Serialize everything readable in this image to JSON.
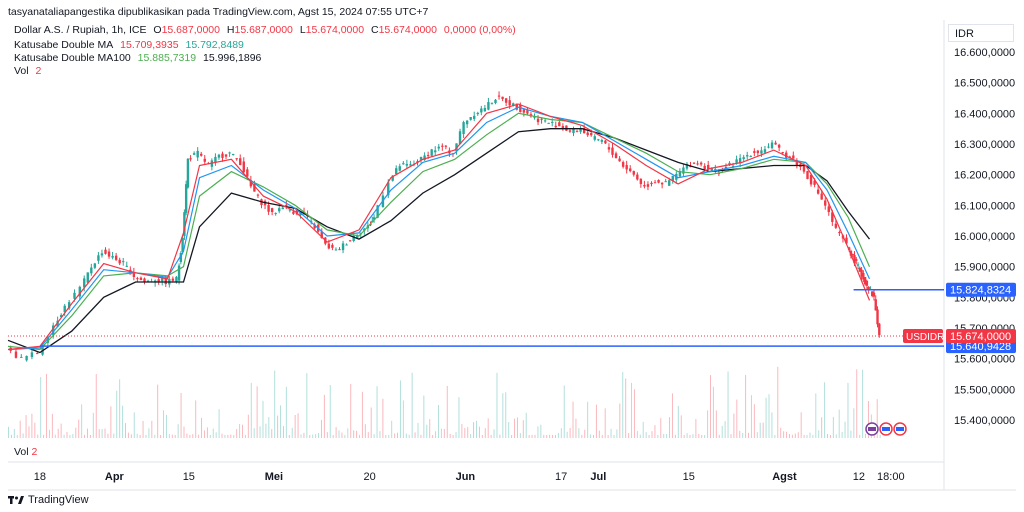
{
  "header": {
    "text": "tasyanataliapangestika dipublikasikan pada TradingView.com, Agst 15, 2024 07:55 UTC+7"
  },
  "legend": {
    "symbol": "Dollar A.S. / Rupiah, 1h, ICE",
    "open_label": "O",
    "open": "15.687,0000",
    "high_label": "H",
    "high": "15.687,0000",
    "low_label": "L",
    "low": "15.674,0000",
    "close_label": "C",
    "close": "15.674,0000",
    "change": "0,0000 (0,00%)",
    "ma1_name": "Katusabe Double MA",
    "ma1_v1": "15.709,3935",
    "ma1_v2": "15.792,8489",
    "ma2_name": "Katusabe Double MA100",
    "ma2_v1": "15.885,7319",
    "ma2_v2": "15.996,1896",
    "vol_name": "Vol",
    "vol_value": "2"
  },
  "currency": "IDR",
  "footer": {
    "brand": "TradingView"
  },
  "colors": {
    "up": "#26a69a",
    "down": "#f23645",
    "ma_red": "#f23645",
    "ma_blue": "#2196f3",
    "ma_green": "#4caf50",
    "ma_black": "#131722",
    "hline": "#2962ff"
  },
  "chart_data": {
    "type": "line",
    "symbol": "USDIDR",
    "y_ticks": [
      "16.600,0000",
      "16.500,0000",
      "16.400,0000",
      "16.300,0000",
      "16.200,0000",
      "16.100,0000",
      "16.000,0000",
      "15.900,0000",
      "15.800,0000",
      "15.700,0000",
      "15.600,0000",
      "15.500,0000",
      "15.400,0000"
    ],
    "y_tick_values": [
      16600,
      16500,
      16400,
      16300,
      16200,
      16100,
      16000,
      15900,
      15800,
      15700,
      15600,
      15500,
      15400
    ],
    "ylim": [
      15350,
      16650
    ],
    "x_ticks": [
      "18",
      "Apr",
      "15",
      "Mei",
      "20",
      "Jun",
      "17",
      "Jul",
      "15",
      "Agst",
      "12",
      "18:00"
    ],
    "x_tick_days": [
      0,
      14,
      28,
      44,
      62,
      80,
      98,
      105,
      122,
      140,
      154,
      160
    ],
    "xlim": [
      -6,
      170
    ],
    "price_days": [
      -6,
      -3,
      0,
      3,
      5,
      8,
      10,
      12,
      14,
      16,
      18,
      20,
      22,
      24,
      26,
      27,
      28,
      30,
      32,
      34,
      36,
      38,
      40,
      42,
      44,
      46,
      48,
      50,
      52,
      54,
      56,
      58,
      60,
      62,
      63,
      66,
      68,
      70,
      72,
      74,
      76,
      78,
      80,
      82,
      84,
      86,
      88,
      90,
      92,
      94,
      96,
      98,
      100,
      102,
      104,
      106,
      108,
      110,
      112,
      114,
      116,
      118,
      120,
      122,
      124,
      126,
      128,
      130,
      132,
      134,
      136,
      138,
      140,
      142,
      144,
      146,
      148,
      150,
      152,
      153,
      154,
      155,
      156,
      157,
      158
    ],
    "price": [
      15630,
      15600,
      15620,
      15710,
      15770,
      15830,
      15900,
      15950,
      15930,
      15910,
      15870,
      15850,
      15860,
      15850,
      15860,
      16000,
      16250,
      16270,
      16230,
      16260,
      16270,
      16240,
      16160,
      16110,
      16070,
      16100,
      16080,
      16070,
      16030,
      15970,
      15950,
      15980,
      16010,
      16030,
      16060,
      16180,
      16230,
      16230,
      16250,
      16280,
      16290,
      16270,
      16370,
      16400,
      16420,
      16450,
      16440,
      16420,
      16400,
      16380,
      16370,
      16360,
      16340,
      16350,
      16320,
      16310,
      16270,
      16230,
      16200,
      16160,
      16180,
      16170,
      16200,
      16230,
      16240,
      16220,
      16210,
      16230,
      16250,
      16270,
      16280,
      16300,
      16270,
      16250,
      16210,
      16160,
      16100,
      16020,
      15970,
      15930,
      15900,
      15860,
      15830,
      15800,
      15674
    ],
    "ma_days": [
      -6,
      0,
      6,
      12,
      18,
      24,
      27,
      30,
      36,
      42,
      48,
      54,
      60,
      66,
      72,
      78,
      84,
      90,
      96,
      102,
      108,
      114,
      120,
      126,
      132,
      138,
      144,
      148,
      152,
      156
    ],
    "ma_red": [
      15630,
      15640,
      15780,
      15910,
      15880,
      15860,
      16010,
      16230,
      16250,
      16130,
      16080,
      15980,
      16020,
      16190,
      16250,
      16280,
      16400,
      16430,
      16390,
      16360,
      16300,
      16230,
      16170,
      16220,
      16240,
      16280,
      16230,
      16120,
      15960,
      15790
    ],
    "ma_blue": [
      15630,
      15635,
      15760,
      15890,
      15880,
      15865,
      15950,
      16190,
      16230,
      16150,
      16090,
      16000,
      16010,
      16150,
      16240,
      16270,
      16370,
      16420,
      16390,
      16370,
      16310,
      16250,
      16190,
      16210,
      16230,
      16260,
      16240,
      16150,
      16010,
      15860
    ],
    "ma_green": [
      15640,
      15630,
      15740,
      15870,
      15880,
      15870,
      15900,
      16130,
      16210,
      16160,
      16100,
      16020,
      16000,
      16110,
      16210,
      16250,
      16330,
      16400,
      16380,
      16370,
      16320,
      16270,
      16210,
      16200,
      16220,
      16250,
      16240,
      16170,
      16060,
      15900
    ],
    "ma_black": [
      15660,
      15620,
      15690,
      15800,
      15850,
      15850,
      15850,
      16030,
      16140,
      16110,
      16090,
      16030,
      15990,
      16050,
      16140,
      16200,
      16270,
      16340,
      16350,
      16350,
      16320,
      16280,
      16240,
      16210,
      16220,
      16230,
      16230,
      16180,
      16080,
      15990
    ],
    "hlines": [
      {
        "value": 15824.8324,
        "label": "15.824,8324",
        "from_day": 153
      },
      {
        "value": 15640.9428,
        "label": "15.640,9428",
        "from_day": 0
      }
    ],
    "last_price": {
      "value": 15674,
      "label": "15.674,0000",
      "symbol": "USDIDR"
    },
    "volume": {
      "label": "Vol",
      "value": "2"
    }
  }
}
